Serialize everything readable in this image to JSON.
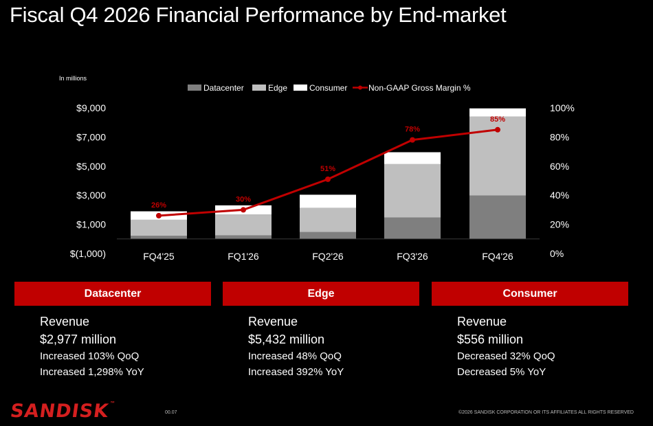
{
  "title": "Fiscal Q4 2026 Financial Performance by End-market",
  "chart_data": {
    "type": "bar",
    "stacked": true,
    "units_note": "In millions",
    "categories": [
      "FQ4'25",
      "FQ1'26",
      "FQ2'26",
      "FQ3'26",
      "FQ4'26"
    ],
    "series": [
      {
        "name": "Datacenter",
        "type": "bar",
        "color": "#7f7f7f",
        "values": [
          213,
          245,
          470,
          1467,
          2977
        ]
      },
      {
        "name": "Edge",
        "type": "bar",
        "color": "#bfbfbf",
        "values": [
          1103,
          1430,
          1659,
          3671,
          5432
        ]
      },
      {
        "name": "Consumer",
        "type": "bar",
        "color": "#ffffff",
        "values": [
          583,
          633,
          909,
          818,
          556
        ]
      },
      {
        "name": "Non-GAAP Gross Margin %",
        "type": "line",
        "axis": "right",
        "color": "#c00000",
        "values": [
          26,
          30,
          51,
          78,
          85
        ],
        "labels": [
          "26%",
          "30%",
          "51%",
          "78%",
          "85%"
        ]
      }
    ],
    "y_left": {
      "min": -1000,
      "max": 9000,
      "ticks": [
        "$9,000",
        "$7,000",
        "$5,000",
        "$3,000",
        "$1,000",
        "$(1,000)"
      ]
    },
    "y_right": {
      "min": 0,
      "max": 100,
      "ticks": [
        "100%",
        "80%",
        "60%",
        "40%",
        "20%",
        "0%"
      ]
    },
    "legend_position": "top",
    "grid": false
  },
  "panels": [
    {
      "header": "Datacenter",
      "label": "Revenue",
      "value": "$2,977 million",
      "qoq": "Increased 103% QoQ",
      "yoy": "Increased 1,298% YoY"
    },
    {
      "header": "Edge",
      "label": "Revenue",
      "value": "$5,432 million",
      "qoq": "Increased 48% QoQ",
      "yoy": "Increased 392% YoY"
    },
    {
      "header": "Consumer",
      "label": "Revenue",
      "value": "$556 million",
      "qoq": "Decreased 32% QoQ",
      "yoy": "Decreased 5% YoY"
    }
  ],
  "footer": {
    "logo": "SANDISK",
    "trademark": "™",
    "page": "00.07",
    "copyright": "©2026 SANDISK CORPORATION OR ITS AFFILIATES ALL RIGHTS RESERVED"
  },
  "colors": {
    "accent": "#c00000",
    "background": "#000000",
    "text": "#ffffff"
  }
}
